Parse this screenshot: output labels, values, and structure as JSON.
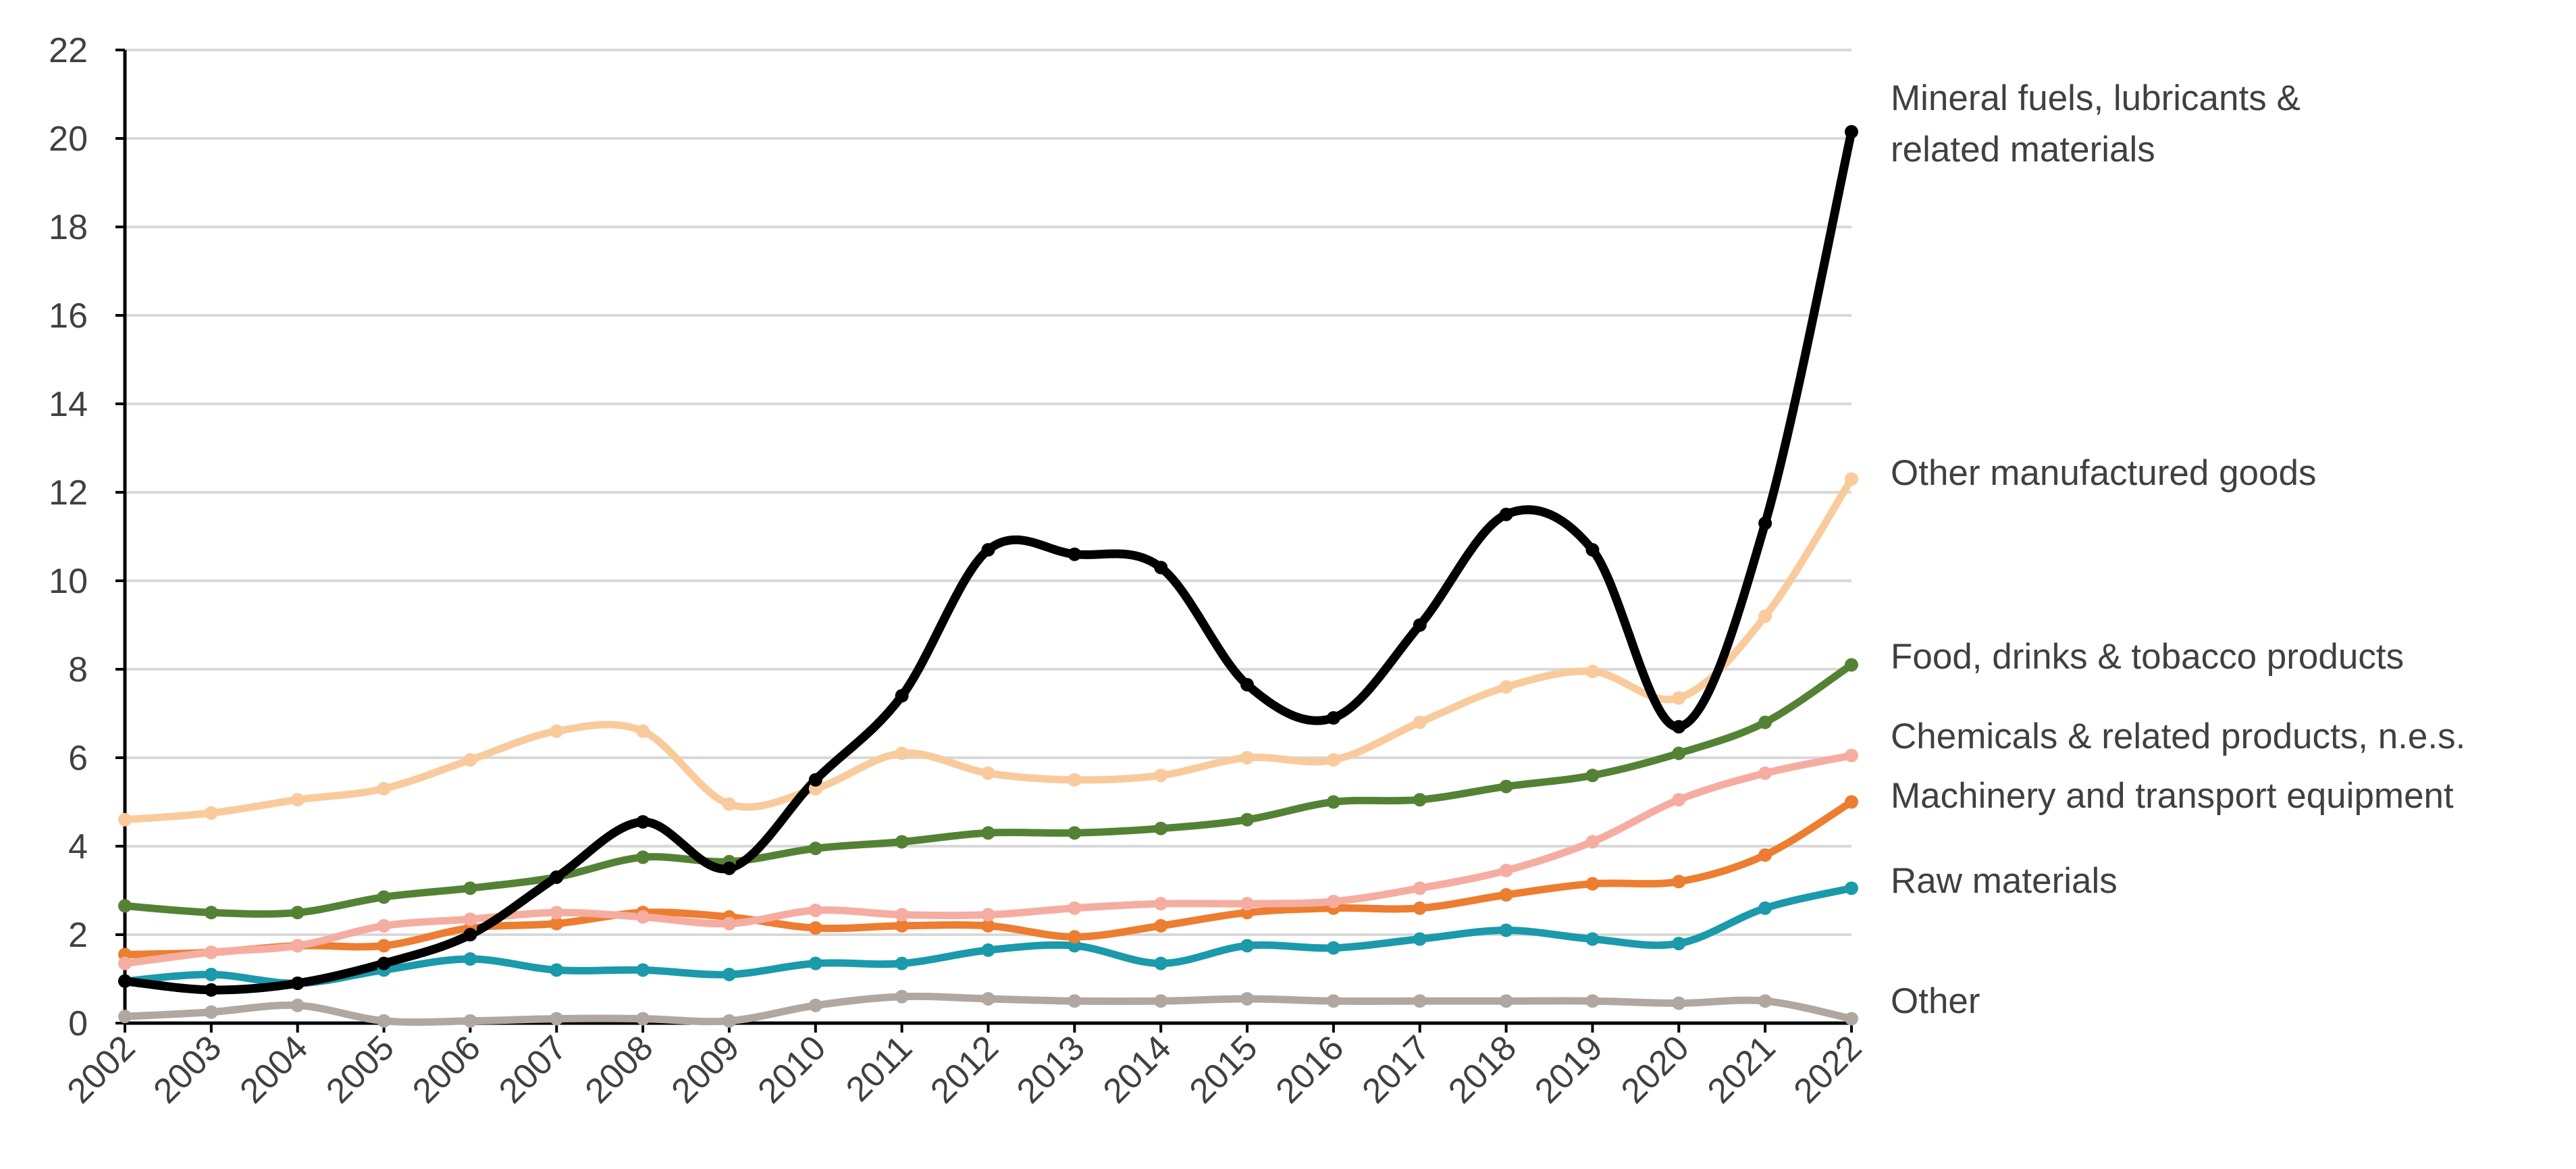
{
  "chart_data": {
    "type": "line",
    "title": "",
    "xlabel": "",
    "ylabel": "",
    "ylim": [
      0,
      22
    ],
    "yticks": [
      0,
      2,
      4,
      6,
      8,
      10,
      12,
      14,
      16,
      18,
      20,
      22
    ],
    "grid": true,
    "legend": "direct labels at right end of lines",
    "x": [
      "2002",
      "2003",
      "2004",
      "2005",
      "2006",
      "2007",
      "2008",
      "2009",
      "2010",
      "2011",
      "2012",
      "2013",
      "2014",
      "2015",
      "2016",
      "2017",
      "2018",
      "2019",
      "2020",
      "2021",
      "2022"
    ],
    "series": [
      {
        "name": "Other",
        "color": "#B0A8A0",
        "label_lines": [
          "Other"
        ],
        "values": [
          0.15,
          0.25,
          0.4,
          0.05,
          0.05,
          0.1,
          0.1,
          0.05,
          0.4,
          0.6,
          0.55,
          0.5,
          0.5,
          0.55,
          0.5,
          0.5,
          0.5,
          0.5,
          0.45,
          0.5,
          0.1
        ]
      },
      {
        "name": "Raw materials",
        "color": "#1A9AAA",
        "label_lines": [
          "Raw materials"
        ],
        "values": [
          0.95,
          1.1,
          0.9,
          1.2,
          1.45,
          1.2,
          1.2,
          1.1,
          1.35,
          1.35,
          1.65,
          1.75,
          1.35,
          1.75,
          1.7,
          1.9,
          2.1,
          1.9,
          1.8,
          2.6,
          3.05
        ]
      },
      {
        "name": "Machinery and transport equipment",
        "color": "#ED7D31",
        "label_lines": [
          "Machinery and transport equipment"
        ],
        "values": [
          1.55,
          1.6,
          1.75,
          1.75,
          2.15,
          2.25,
          2.5,
          2.4,
          2.15,
          2.2,
          2.2,
          1.95,
          2.2,
          2.5,
          2.6,
          2.6,
          2.9,
          3.15,
          3.2,
          3.8,
          5.0
        ]
      },
      {
        "name": "Chemicals & related products, n.e.s.",
        "color": "#F6ADA1",
        "label_lines": [
          "Chemicals & related products, n.e.s."
        ],
        "values": [
          1.35,
          1.6,
          1.75,
          2.2,
          2.35,
          2.5,
          2.4,
          2.25,
          2.55,
          2.45,
          2.45,
          2.6,
          2.7,
          2.7,
          2.75,
          3.05,
          3.45,
          4.1,
          5.05,
          5.65,
          6.05
        ]
      },
      {
        "name": "Food, drinks & tobacco products",
        "color": "#548235",
        "label_lines": [
          "Food, drinks & tobacco products"
        ],
        "values": [
          2.65,
          2.5,
          2.5,
          2.85,
          3.05,
          3.3,
          3.75,
          3.65,
          3.95,
          4.1,
          4.3,
          4.3,
          4.4,
          4.6,
          5.0,
          5.05,
          5.35,
          5.6,
          6.1,
          6.8,
          8.1
        ]
      },
      {
        "name": "Other manufactured goods",
        "color": "#F9CB9C",
        "label_lines": [
          "Other manufactured goods"
        ],
        "values": [
          4.6,
          4.75,
          5.05,
          5.3,
          5.95,
          6.6,
          6.6,
          4.95,
          5.3,
          6.1,
          5.65,
          5.5,
          5.6,
          6.0,
          5.95,
          6.8,
          7.6,
          7.95,
          7.35,
          9.2,
          12.3
        ]
      },
      {
        "name": "Mineral fuels, lubricants & related materials",
        "color": "#000000",
        "label_lines": [
          "Mineral fuels, lubricants &",
          "related materials"
        ],
        "values": [
          0.95,
          0.75,
          0.9,
          1.35,
          2.0,
          3.3,
          4.55,
          3.5,
          5.5,
          7.4,
          10.7,
          10.6,
          10.3,
          7.65,
          6.9,
          9.0,
          11.5,
          10.7,
          6.7,
          11.3,
          20.15
        ]
      }
    ]
  }
}
